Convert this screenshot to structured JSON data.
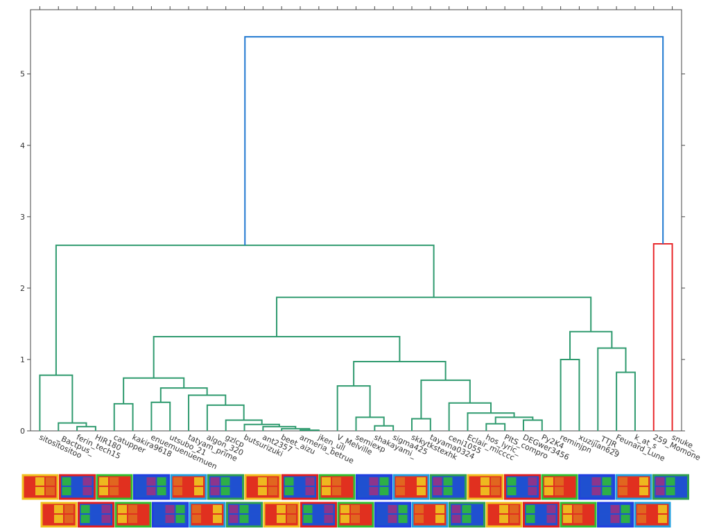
{
  "chart_data": {
    "type": "dendrogram",
    "leaves": [
      "sitositositoo",
      "_Bactpus_",
      "ferin_tech15",
      "HIR180",
      "catupper",
      "kakira9618",
      "enuemuenuemuen",
      "utsubo_21",
      "tatyam_prime",
      "algon_320",
      "gzlcp",
      "butsurizuki",
      "ant2357",
      "beet_aizu",
      "armeria_betrue",
      "jken_ull",
      "V_Melville",
      "semiexp",
      "shakayami_",
      "sigma425",
      "skkytkstexhk",
      "tayama0324",
      "ceni1055",
      "Eclair_micccc",
      "hos_lyric_",
      "PItS_compro",
      "DEGwer3456",
      "Py2K4",
      "reminjpn",
      "xuzijian629",
      "_TTJR_",
      "Feunard_Lune",
      "k_at_s",
      "259_Momone",
      "snuke_"
    ],
    "links": [
      {
        "children": [
          2,
          3
        ],
        "height": 0.06,
        "color": "#2e9a6e"
      },
      {
        "children": [
          1,
          35
        ],
        "height": 0.11,
        "color": "#2e9a6e"
      },
      {
        "children": [
          0,
          36
        ],
        "height": 0.78,
        "color": "#2e9a6e"
      },
      {
        "children": [
          4,
          5
        ],
        "height": 0.38,
        "color": "#2e9a6e"
      },
      {
        "children": [
          6,
          7
        ],
        "height": 0.4,
        "color": "#2e9a6e"
      },
      {
        "children": [
          14,
          15
        ],
        "height": 0.01,
        "color": "#2e9a6e"
      },
      {
        "children": [
          13,
          40
        ],
        "height": 0.03,
        "color": "#2e9a6e"
      },
      {
        "children": [
          12,
          41
        ],
        "height": 0.06,
        "color": "#2e9a6e"
      },
      {
        "children": [
          11,
          42
        ],
        "height": 0.09,
        "color": "#2e9a6e"
      },
      {
        "children": [
          10,
          43
        ],
        "height": 0.15,
        "color": "#2e9a6e"
      },
      {
        "children": [
          9,
          44
        ],
        "height": 0.36,
        "color": "#2e9a6e"
      },
      {
        "children": [
          8,
          45
        ],
        "height": 0.5,
        "color": "#2e9a6e"
      },
      {
        "children": [
          39,
          46
        ],
        "height": 0.6,
        "color": "#2e9a6e"
      },
      {
        "children": [
          38,
          47
        ],
        "height": 0.74,
        "color": "#2e9a6e"
      },
      {
        "children": [
          18,
          19
        ],
        "height": 0.07,
        "color": "#2e9a6e"
      },
      {
        "children": [
          17,
          49
        ],
        "height": 0.19,
        "color": "#2e9a6e"
      },
      {
        "children": [
          16,
          50
        ],
        "height": 0.63,
        "color": "#2e9a6e"
      },
      {
        "children": [
          20,
          21
        ],
        "height": 0.17,
        "color": "#2e9a6e"
      },
      {
        "children": [
          24,
          25
        ],
        "height": 0.1,
        "color": "#2e9a6e"
      },
      {
        "children": [
          26,
          27
        ],
        "height": 0.15,
        "color": "#2e9a6e"
      },
      {
        "children": [
          53,
          54
        ],
        "height": 0.19,
        "color": "#2e9a6e"
      },
      {
        "children": [
          23,
          55
        ],
        "height": 0.25,
        "color": "#2e9a6e"
      },
      {
        "children": [
          22,
          56
        ],
        "height": 0.39,
        "color": "#2e9a6e"
      },
      {
        "children": [
          52,
          57
        ],
        "height": 0.71,
        "color": "#2e9a6e"
      },
      {
        "children": [
          51,
          58
        ],
        "height": 0.97,
        "color": "#2e9a6e"
      },
      {
        "children": [
          48,
          59
        ],
        "height": 1.32,
        "color": "#2e9a6e"
      },
      {
        "children": [
          28,
          29
        ],
        "height": 1.0,
        "color": "#2e9a6e"
      },
      {
        "children": [
          31,
          32
        ],
        "height": 0.82,
        "color": "#2e9a6e"
      },
      {
        "children": [
          30,
          62
        ],
        "height": 1.16,
        "color": "#2e9a6e"
      },
      {
        "children": [
          61,
          63
        ],
        "height": 1.39,
        "color": "#2e9a6e"
      },
      {
        "children": [
          60,
          64
        ],
        "height": 1.87,
        "color": "#2e9a6e"
      },
      {
        "children": [
          37,
          65
        ],
        "height": 2.6,
        "color": "#2e9a6e"
      },
      {
        "children": [
          33,
          34
        ],
        "height": 2.62,
        "color": "#e8282b"
      },
      {
        "children": [
          66,
          67
        ],
        "height": 5.52,
        "color": "#1f77d0"
      }
    ],
    "ylim": [
      0,
      5.9
    ],
    "yticks": [
      0,
      1,
      2,
      3,
      4,
      5
    ]
  }
}
